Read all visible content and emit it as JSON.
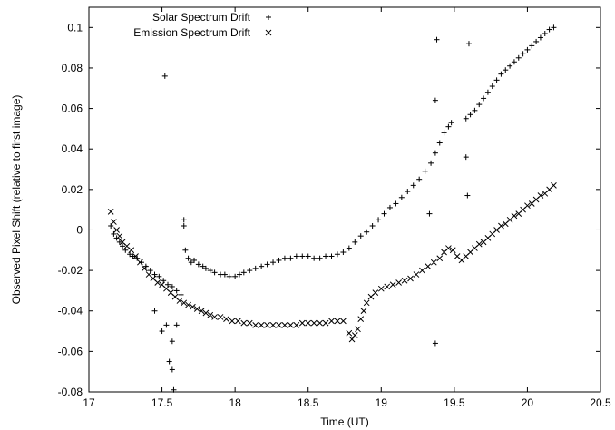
{
  "chart_data": {
    "type": "scatter",
    "xlabel": "Time (UT)",
    "ylabel": "Observed Pixel Shift (relative to first image)",
    "xlim": [
      17,
      20.5
    ],
    "ylim": [
      -0.08,
      0.11
    ],
    "xticks": [
      17,
      17.5,
      18,
      18.5,
      19,
      19.5,
      20,
      20.5
    ],
    "yticks": [
      -0.08,
      -0.06,
      -0.04,
      -0.02,
      0,
      0.02,
      0.04,
      0.06,
      0.08,
      0.1
    ],
    "xtick_labels": [
      "17",
      "17.5",
      "18",
      "18.5",
      "19",
      "19.5",
      "20",
      "20.5"
    ],
    "ytick_labels": [
      "-0.08",
      "-0.06",
      "-0.04",
      "-0.02",
      "0",
      "0.02",
      "0.04",
      "0.06",
      "0.08",
      "0.1"
    ],
    "grid": false,
    "legend_position": "top-left",
    "series": [
      {
        "name": "Solar Spectrum Drift",
        "marker": "plus",
        "color": "#000000",
        "points": [
          [
            17.15,
            0.002
          ],
          [
            17.17,
            -0.002
          ],
          [
            17.19,
            -0.004
          ],
          [
            17.21,
            -0.006
          ],
          [
            17.23,
            -0.008
          ],
          [
            17.25,
            -0.01
          ],
          [
            17.28,
            -0.012
          ],
          [
            17.3,
            -0.013
          ],
          [
            17.33,
            -0.014
          ],
          [
            17.36,
            -0.016
          ],
          [
            17.39,
            -0.018
          ],
          [
            17.42,
            -0.02
          ],
          [
            17.45,
            -0.022
          ],
          [
            17.48,
            -0.023
          ],
          [
            17.51,
            -0.025
          ],
          [
            17.54,
            -0.027
          ],
          [
            17.57,
            -0.028
          ],
          [
            17.6,
            -0.03
          ],
          [
            17.63,
            -0.032
          ],
          [
            17.45,
            -0.04
          ],
          [
            17.5,
            -0.05
          ],
          [
            17.53,
            -0.047
          ],
          [
            17.55,
            -0.065
          ],
          [
            17.57,
            -0.069
          ],
          [
            17.58,
            -0.079
          ],
          [
            17.57,
            -0.055
          ],
          [
            17.6,
            -0.047
          ],
          [
            17.52,
            0.076
          ],
          [
            17.65,
            0.005
          ],
          [
            17.65,
            0.002
          ],
          [
            17.66,
            -0.01
          ],
          [
            17.68,
            -0.014
          ],
          [
            17.7,
            -0.016
          ],
          [
            17.72,
            -0.015
          ],
          [
            17.75,
            -0.017
          ],
          [
            17.78,
            -0.018
          ],
          [
            17.8,
            -0.019
          ],
          [
            17.83,
            -0.02
          ],
          [
            17.86,
            -0.021
          ],
          [
            17.9,
            -0.022
          ],
          [
            17.93,
            -0.022
          ],
          [
            17.96,
            -0.023
          ],
          [
            18.0,
            -0.023
          ],
          [
            18.03,
            -0.022
          ],
          [
            18.06,
            -0.021
          ],
          [
            18.1,
            -0.02
          ],
          [
            18.14,
            -0.019
          ],
          [
            18.18,
            -0.018
          ],
          [
            18.22,
            -0.017
          ],
          [
            18.26,
            -0.016
          ],
          [
            18.3,
            -0.015
          ],
          [
            18.34,
            -0.014
          ],
          [
            18.38,
            -0.014
          ],
          [
            18.42,
            -0.013
          ],
          [
            18.46,
            -0.013
          ],
          [
            18.5,
            -0.013
          ],
          [
            18.54,
            -0.014
          ],
          [
            18.58,
            -0.014
          ],
          [
            18.62,
            -0.013
          ],
          [
            18.66,
            -0.013
          ],
          [
            18.7,
            -0.012
          ],
          [
            18.74,
            -0.011
          ],
          [
            18.78,
            -0.009
          ],
          [
            18.82,
            -0.006
          ],
          [
            18.86,
            -0.003
          ],
          [
            18.9,
            -0.001
          ],
          [
            18.94,
            0.002
          ],
          [
            18.98,
            0.005
          ],
          [
            19.02,
            0.008
          ],
          [
            19.06,
            0.011
          ],
          [
            19.1,
            0.013
          ],
          [
            19.14,
            0.016
          ],
          [
            19.18,
            0.019
          ],
          [
            19.22,
            0.022
          ],
          [
            19.26,
            0.025
          ],
          [
            19.3,
            0.029
          ],
          [
            19.34,
            0.033
          ],
          [
            19.37,
            0.038
          ],
          [
            19.4,
            0.043
          ],
          [
            19.43,
            0.048
          ],
          [
            19.46,
            0.051
          ],
          [
            19.48,
            0.053
          ],
          [
            19.38,
            0.094
          ],
          [
            19.6,
            0.092
          ],
          [
            19.58,
            0.036
          ],
          [
            19.59,
            0.017
          ],
          [
            19.37,
            0.064
          ],
          [
            19.37,
            -0.056
          ],
          [
            19.33,
            0.008
          ],
          [
            19.58,
            0.055
          ],
          [
            19.61,
            0.057
          ],
          [
            19.64,
            0.059
          ],
          [
            19.67,
            0.062
          ],
          [
            19.7,
            0.065
          ],
          [
            19.73,
            0.068
          ],
          [
            19.76,
            0.071
          ],
          [
            19.79,
            0.074
          ],
          [
            19.82,
            0.077
          ],
          [
            19.85,
            0.079
          ],
          [
            19.88,
            0.081
          ],
          [
            19.91,
            0.083
          ],
          [
            19.94,
            0.085
          ],
          [
            19.97,
            0.087
          ],
          [
            20.0,
            0.089
          ],
          [
            20.03,
            0.091
          ],
          [
            20.06,
            0.093
          ],
          [
            20.09,
            0.095
          ],
          [
            20.12,
            0.097
          ],
          [
            20.15,
            0.099
          ],
          [
            20.18,
            0.1
          ]
        ]
      },
      {
        "name": "Emission Spectrum Drift",
        "marker": "cross",
        "color": "#000000",
        "points": [
          [
            17.15,
            0.009
          ],
          [
            17.17,
            0.004
          ],
          [
            17.19,
            0.0
          ],
          [
            17.21,
            -0.003
          ],
          [
            17.23,
            -0.006
          ],
          [
            17.26,
            -0.008
          ],
          [
            17.29,
            -0.01
          ],
          [
            17.32,
            -0.013
          ],
          [
            17.35,
            -0.016
          ],
          [
            17.38,
            -0.019
          ],
          [
            17.41,
            -0.022
          ],
          [
            17.44,
            -0.024
          ],
          [
            17.47,
            -0.026
          ],
          [
            17.5,
            -0.027
          ],
          [
            17.53,
            -0.029
          ],
          [
            17.56,
            -0.031
          ],
          [
            17.59,
            -0.033
          ],
          [
            17.62,
            -0.035
          ],
          [
            17.65,
            -0.036
          ],
          [
            17.68,
            -0.037
          ],
          [
            17.71,
            -0.038
          ],
          [
            17.74,
            -0.039
          ],
          [
            17.77,
            -0.04
          ],
          [
            17.8,
            -0.041
          ],
          [
            17.83,
            -0.042
          ],
          [
            17.86,
            -0.043
          ],
          [
            17.9,
            -0.043
          ],
          [
            17.94,
            -0.044
          ],
          [
            17.98,
            -0.045
          ],
          [
            18.02,
            -0.045
          ],
          [
            18.06,
            -0.046
          ],
          [
            18.1,
            -0.046
          ],
          [
            18.14,
            -0.047
          ],
          [
            18.18,
            -0.047
          ],
          [
            18.22,
            -0.047
          ],
          [
            18.26,
            -0.047
          ],
          [
            18.3,
            -0.047
          ],
          [
            18.34,
            -0.047
          ],
          [
            18.38,
            -0.047
          ],
          [
            18.42,
            -0.047
          ],
          [
            18.46,
            -0.046
          ],
          [
            18.5,
            -0.046
          ],
          [
            18.54,
            -0.046
          ],
          [
            18.58,
            -0.046
          ],
          [
            18.62,
            -0.046
          ],
          [
            18.66,
            -0.045
          ],
          [
            18.7,
            -0.045
          ],
          [
            18.74,
            -0.045
          ],
          [
            18.78,
            -0.051
          ],
          [
            18.8,
            -0.054
          ],
          [
            18.82,
            -0.052
          ],
          [
            18.84,
            -0.049
          ],
          [
            18.86,
            -0.044
          ],
          [
            18.88,
            -0.04
          ],
          [
            18.9,
            -0.036
          ],
          [
            18.93,
            -0.033
          ],
          [
            18.96,
            -0.031
          ],
          [
            19.0,
            -0.029
          ],
          [
            19.04,
            -0.028
          ],
          [
            19.08,
            -0.027
          ],
          [
            19.12,
            -0.026
          ],
          [
            19.16,
            -0.025
          ],
          [
            19.2,
            -0.024
          ],
          [
            19.24,
            -0.022
          ],
          [
            19.28,
            -0.02
          ],
          [
            19.32,
            -0.018
          ],
          [
            19.36,
            -0.016
          ],
          [
            19.4,
            -0.014
          ],
          [
            19.43,
            -0.011
          ],
          [
            19.46,
            -0.009
          ],
          [
            19.49,
            -0.01
          ],
          [
            19.52,
            -0.013
          ],
          [
            19.55,
            -0.015
          ],
          [
            19.58,
            -0.013
          ],
          [
            19.61,
            -0.011
          ],
          [
            19.64,
            -0.009
          ],
          [
            19.67,
            -0.007
          ],
          [
            19.7,
            -0.006
          ],
          [
            19.73,
            -0.004
          ],
          [
            19.76,
            -0.002
          ],
          [
            19.79,
            0.0
          ],
          [
            19.82,
            0.002
          ],
          [
            19.85,
            0.003
          ],
          [
            19.88,
            0.005
          ],
          [
            19.91,
            0.007
          ],
          [
            19.94,
            0.008
          ],
          [
            19.97,
            0.01
          ],
          [
            20.0,
            0.012
          ],
          [
            20.03,
            0.013
          ],
          [
            20.06,
            0.015
          ],
          [
            20.09,
            0.017
          ],
          [
            20.12,
            0.018
          ],
          [
            20.15,
            0.02
          ],
          [
            20.18,
            0.022
          ]
        ]
      }
    ]
  }
}
